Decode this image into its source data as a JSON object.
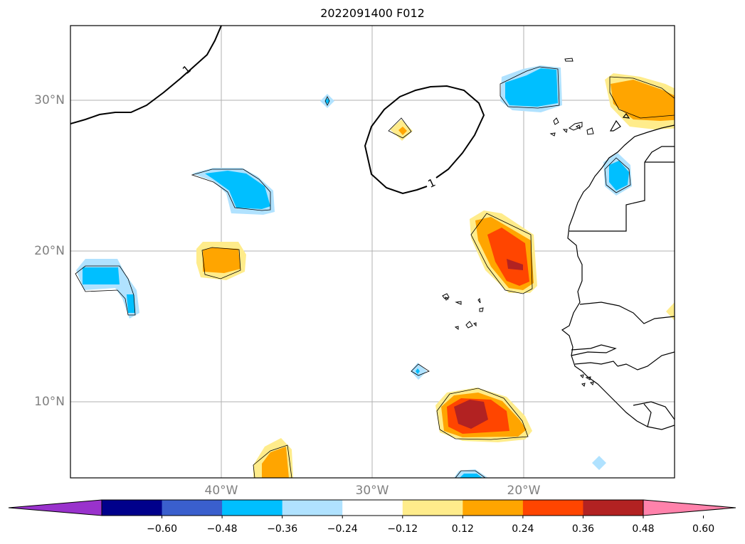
{
  "title": "2022091400 F012",
  "map": {
    "lat_labels": [
      {
        "text": "30°N",
        "value": 30
      },
      {
        "text": "20°N",
        "value": 20
      },
      {
        "text": "10°N",
        "value": 10
      }
    ],
    "lon_labels": [
      {
        "text": "40°W",
        "value": -40
      },
      {
        "text": "30°W",
        "value": -30
      },
      {
        "text": "20°W",
        "value": -20
      }
    ],
    "contour_label": "1",
    "fill_colors": {
      "pos1": "#ffec8b",
      "pos2": "#ffa500",
      "pos3": "#ff4500",
      "pos4": "#b22222",
      "pos5": "#ff82ab",
      "neg1": "#b0e2ff",
      "neg2": "#00bfff",
      "neg3": "#3a5fcd",
      "neg4": "#00008b",
      "neg5": "#9932cc"
    }
  },
  "colorbar": {
    "ticks": [
      "−0.60",
      "−0.48",
      "−0.36",
      "−0.24",
      "−0.12",
      "0.12",
      "0.24",
      "0.36",
      "0.48",
      "0.60"
    ],
    "colors": [
      "#9932cc",
      "#00008b",
      "#3a5fcd",
      "#00bfff",
      "#b0e2ff",
      "#ffffff",
      "#ffec8b",
      "#ffa500",
      "#ff4500",
      "#b22222",
      "#ff82ab"
    ]
  }
}
